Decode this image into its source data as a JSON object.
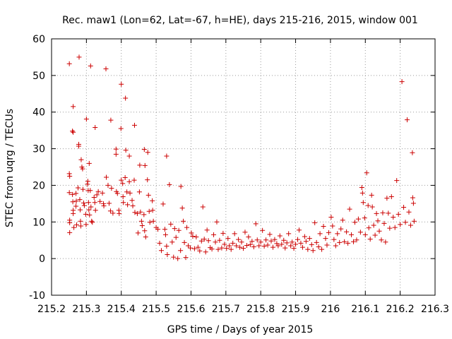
{
  "chart_data": {
    "type": "scatter",
    "title": "Rec. maw1 (Lon=62, Lat=-67, h=HE), days 215-216, 2015, window 001",
    "xlabel": "GPS time / Days of year 2015",
    "ylabel": "STEC from uqrg / TECUs",
    "xlim": [
      215.2,
      216.3
    ],
    "ylim": [
      -10,
      60
    ],
    "xticks": [
      {
        "value": 215.2,
        "label": "215.2"
      },
      {
        "value": 215.3,
        "label": "215.3"
      },
      {
        "value": 215.4,
        "label": "215.4"
      },
      {
        "value": 215.5,
        "label": "215.5"
      },
      {
        "value": 215.6,
        "label": "215.6"
      },
      {
        "value": 215.7,
        "label": "215.7"
      },
      {
        "value": 215.8,
        "label": "215.8"
      },
      {
        "value": 215.9,
        "label": "215.9"
      },
      {
        "value": 216.0,
        "label": "216"
      },
      {
        "value": 216.1,
        "label": "216.1"
      },
      {
        "value": 216.2,
        "label": "216.2"
      },
      {
        "value": 216.3,
        "label": "216.3"
      }
    ],
    "yticks": [
      {
        "value": -10,
        "label": "-10"
      },
      {
        "value": 0,
        "label": "0"
      },
      {
        "value": 10,
        "label": "10"
      },
      {
        "value": 20,
        "label": "20"
      },
      {
        "value": 30,
        "label": "30"
      },
      {
        "value": 40,
        "label": "40"
      },
      {
        "value": 50,
        "label": "50"
      },
      {
        "value": 60,
        "label": "60"
      }
    ],
    "grid": true,
    "marker_color": "#cc0000",
    "series": [
      {
        "points": [
          [
            215.251,
            53.2
          ],
          [
            215.262,
            41.5
          ],
          [
            215.26,
            34.8
          ],
          [
            215.262,
            34.5
          ],
          [
            215.279,
            55
          ],
          [
            215.278,
            31.2
          ],
          [
            215.278,
            30.7
          ],
          [
            215.285,
            27
          ],
          [
            215.287,
            25
          ],
          [
            215.289,
            24.5
          ],
          [
            215.3,
            38.1
          ],
          [
            215.308,
            26
          ],
          [
            215.312,
            52.6
          ],
          [
            215.325,
            35.8
          ],
          [
            215.356,
            51.8
          ],
          [
            215.37,
            37.8
          ],
          [
            215.385,
            29.9
          ],
          [
            215.385,
            28.5
          ],
          [
            215.4,
            47.6
          ],
          [
            215.399,
            35.5
          ],
          [
            215.412,
            43.8
          ],
          [
            215.413,
            29.6
          ],
          [
            215.423,
            28
          ],
          [
            215.438,
            36.4
          ],
          [
            215.453,
            25.5
          ],
          [
            215.466,
            29.8
          ],
          [
            215.468,
            25.4
          ],
          [
            215.476,
            29
          ],
          [
            215.53,
            28
          ],
          [
            215.571,
            19.7
          ],
          [
            215.251,
            23.2
          ],
          [
            215.252,
            22.5
          ],
          [
            215.251,
            18
          ],
          [
            215.252,
            10.5
          ],
          [
            215.252,
            9.8
          ],
          [
            215.252,
            7.1
          ],
          [
            215.26,
            17.5
          ],
          [
            215.261,
            15.5
          ],
          [
            215.262,
            13.2
          ],
          [
            215.262,
            12.3
          ],
          [
            215.264,
            8.5
          ],
          [
            215.27,
            17.8
          ],
          [
            215.271,
            15.7
          ],
          [
            215.27,
            14.3
          ],
          [
            215.272,
            9.2
          ],
          [
            215.276,
            19.3
          ],
          [
            215.281,
            16.1
          ],
          [
            215.282,
            13.3
          ],
          [
            215.283,
            10.2
          ],
          [
            215.284,
            8.9
          ],
          [
            215.29,
            18.9
          ],
          [
            215.292,
            15.2
          ],
          [
            215.294,
            14.5
          ],
          [
            215.298,
            12.1
          ],
          [
            215.299,
            9.3
          ],
          [
            215.304,
            21.1
          ],
          [
            215.303,
            20.3
          ],
          [
            215.305,
            18.6
          ],
          [
            215.306,
            15.3
          ],
          [
            215.307,
            13.3
          ],
          [
            215.309,
            11.9
          ],
          [
            215.311,
            18.6
          ],
          [
            215.313,
            14.1
          ],
          [
            215.315,
            10.2
          ],
          [
            215.317,
            9.9
          ],
          [
            215.322,
            16.7
          ],
          [
            215.324,
            15.3
          ],
          [
            215.326,
            13.2
          ],
          [
            215.33,
            17.4
          ],
          [
            215.334,
            18.3
          ],
          [
            215.339,
            15.6
          ],
          [
            215.346,
            17.9
          ],
          [
            215.349,
            15
          ],
          [
            215.35,
            14.4
          ],
          [
            215.357,
            22.2
          ],
          [
            215.362,
            20
          ],
          [
            215.365,
            15.1
          ],
          [
            215.369,
            13
          ],
          [
            215.372,
            19.2
          ],
          [
            215.376,
            12.4
          ],
          [
            215.386,
            18.3
          ],
          [
            215.389,
            17.8
          ],
          [
            215.393,
            13.2
          ],
          [
            215.394,
            12.3
          ],
          [
            215.4,
            21.4
          ],
          [
            215.404,
            20.5
          ],
          [
            215.405,
            16.9
          ],
          [
            215.406,
            15.3
          ],
          [
            215.411,
            22.1
          ],
          [
            215.416,
            18.2
          ],
          [
            215.418,
            14.7
          ],
          [
            215.423,
            21
          ],
          [
            215.425,
            17.9
          ],
          [
            215.431,
            15.9
          ],
          [
            215.433,
            14.4
          ],
          [
            215.437,
            21.4
          ],
          [
            215.439,
            12.6
          ],
          [
            215.446,
            12.3
          ],
          [
            215.448,
            7
          ],
          [
            215.452,
            18.2
          ],
          [
            215.455,
            12.7
          ],
          [
            215.458,
            10.2
          ],
          [
            215.46,
            9
          ],
          [
            215.465,
            12
          ],
          [
            215.467,
            7.6
          ],
          [
            215.47,
            5.9
          ],
          [
            215.475,
            21.5
          ],
          [
            215.478,
            17.3
          ],
          [
            215.48,
            12.9
          ],
          [
            215.482,
            9.9
          ],
          [
            215.489,
            15.8
          ],
          [
            215.49,
            13.2
          ],
          [
            215.492,
            10.2
          ],
          [
            215.5,
            8.5
          ],
          [
            215.505,
            8
          ],
          [
            215.51,
            4.2
          ],
          [
            215.515,
            2.2
          ],
          [
            215.52,
            14.9
          ],
          [
            215.525,
            8
          ],
          [
            215.527,
            6.5
          ],
          [
            215.53,
            3.4
          ],
          [
            215.532,
            1.1
          ],
          [
            215.538,
            20.2
          ],
          [
            215.542,
            9.4
          ],
          [
            215.546,
            4.5
          ],
          [
            215.55,
            0.4
          ],
          [
            215.553,
            8.2
          ],
          [
            215.557,
            5.8
          ],
          [
            215.562,
            0
          ],
          [
            215.565,
            7.7
          ],
          [
            215.57,
            2.2
          ],
          [
            215.575,
            13.8
          ],
          [
            215.578,
            10.2
          ],
          [
            215.581,
            4.4
          ],
          [
            215.585,
            0.3
          ],
          [
            215.588,
            8.5
          ],
          [
            215.592,
            3.5
          ],
          [
            215.598,
            2.9
          ],
          [
            215.601,
            7
          ],
          [
            215.605,
            6.1
          ],
          [
            215.61,
            2.7
          ],
          [
            215.615,
            5.9
          ],
          [
            215.62,
            3.1
          ],
          [
            215.625,
            2.1
          ],
          [
            215.63,
            4.8
          ],
          [
            215.634,
            14.1
          ],
          [
            215.638,
            5.3
          ],
          [
            215.642,
            1.8
          ],
          [
            215.646,
            7.8
          ],
          [
            215.65,
            4.9
          ],
          [
            215.655,
            3
          ],
          [
            215.66,
            2.6
          ],
          [
            215.665,
            6.5
          ],
          [
            215.67,
            4.5
          ],
          [
            215.674,
            10
          ],
          [
            215.678,
            2.5
          ],
          [
            215.682,
            5
          ],
          [
            215.688,
            2.9
          ],
          [
            215.692,
            6.9
          ],
          [
            215.696,
            3.9
          ],
          [
            215.702,
            2.8
          ],
          [
            215.706,
            5.5
          ],
          [
            215.71,
            3.5
          ],
          [
            215.715,
            2.5
          ],
          [
            215.72,
            4.2
          ],
          [
            215.725,
            6.8
          ],
          [
            215.73,
            3.5
          ],
          [
            215.736,
            5.2
          ],
          [
            215.74,
            3.1
          ],
          [
            215.745,
            4.5
          ],
          [
            215.75,
            2.8
          ],
          [
            215.755,
            7.2
          ],
          [
            215.76,
            3.6
          ],
          [
            215.765,
            5.9
          ],
          [
            215.77,
            3.8
          ],
          [
            215.775,
            4.7
          ],
          [
            215.78,
            3.2
          ],
          [
            215.786,
            9.5
          ],
          [
            215.79,
            5.1
          ],
          [
            215.795,
            3.5
          ],
          [
            215.8,
            4.5
          ],
          [
            215.805,
            7.7
          ],
          [
            215.81,
            3.4
          ],
          [
            215.815,
            5.1
          ],
          [
            215.82,
            3.7
          ],
          [
            215.826,
            6.6
          ],
          [
            215.83,
            4.8
          ],
          [
            215.835,
            3.1
          ],
          [
            215.84,
            5.2
          ],
          [
            215.846,
            4.1
          ],
          [
            215.85,
            3.5
          ],
          [
            215.855,
            6.2
          ],
          [
            215.86,
            3.9
          ],
          [
            215.866,
            5
          ],
          [
            215.87,
            2.9
          ],
          [
            215.875,
            4.3
          ],
          [
            215.88,
            6.8
          ],
          [
            215.886,
            3.5
          ],
          [
            215.89,
            4.5
          ],
          [
            215.895,
            2.8
          ],
          [
            215.9,
            3.9
          ],
          [
            215.906,
            5.2
          ],
          [
            215.91,
            7.8
          ],
          [
            215.915,
            4.2
          ],
          [
            215.92,
            3.1
          ],
          [
            215.926,
            6
          ],
          [
            215.93,
            4.7
          ],
          [
            215.935,
            2.5
          ],
          [
            215.94,
            5.5
          ],
          [
            215.946,
            3.8
          ],
          [
            215.95,
            2.2
          ],
          [
            215.955,
            9.8
          ],
          [
            215.96,
            4.4
          ],
          [
            215.966,
            3.2
          ],
          [
            215.97,
            6.8
          ],
          [
            215.975,
            2.5
          ],
          [
            215.98,
            8.8
          ],
          [
            215.986,
            5.5
          ],
          [
            215.99,
            3.7
          ],
          [
            215.995,
            7.1
          ],
          [
            216.002,
            11.3
          ],
          [
            216.006,
            8.9
          ],
          [
            216.01,
            5.2
          ],
          [
            216.015,
            3.5
          ],
          [
            216.02,
            6.8
          ],
          [
            216.026,
            4.4
          ],
          [
            216.03,
            8.1
          ],
          [
            216.035,
            10.5
          ],
          [
            216.04,
            4.6
          ],
          [
            216.046,
            7.3
          ],
          [
            216.05,
            4.2
          ],
          [
            216.055,
            13.5
          ],
          [
            216.06,
            6.5
          ],
          [
            216.066,
            4.6
          ],
          [
            216.07,
            9.9
          ],
          [
            216.075,
            5.1
          ],
          [
            216.08,
            10.8
          ],
          [
            216.086,
            7.2
          ],
          [
            216.09,
            19.4
          ],
          [
            216.092,
            17.9
          ],
          [
            216.094,
            15.3
          ],
          [
            216.098,
            11.1
          ],
          [
            216.1,
            6.5
          ],
          [
            216.104,
            23.4
          ],
          [
            216.108,
            14.5
          ],
          [
            216.11,
            8.4
          ],
          [
            216.114,
            5.3
          ],
          [
            216.118,
            17.3
          ],
          [
            216.12,
            14.1
          ],
          [
            216.124,
            9.1
          ],
          [
            216.128,
            6.4
          ],
          [
            216.132,
            12.3
          ],
          [
            216.136,
            10.3
          ],
          [
            216.14,
            7.5
          ],
          [
            216.146,
            5.1
          ],
          [
            216.15,
            12.5
          ],
          [
            216.154,
            9.6
          ],
          [
            216.158,
            4.5
          ],
          [
            216.162,
            16.5
          ],
          [
            216.166,
            12.4
          ],
          [
            216.17,
            8.3
          ],
          [
            216.175,
            16.9
          ],
          [
            216.18,
            11.3
          ],
          [
            216.185,
            8.5
          ],
          [
            216.19,
            21.3
          ],
          [
            216.195,
            12.1
          ],
          [
            216.2,
            9.3
          ],
          [
            216.205,
            48.3
          ],
          [
            216.21,
            14
          ],
          [
            216.215,
            9.9
          ],
          [
            216.22,
            37.9
          ],
          [
            216.225,
            12.7
          ],
          [
            216.23,
            9.1
          ],
          [
            216.235,
            28.9
          ],
          [
            216.236,
            16.6
          ],
          [
            216.238,
            15.1
          ],
          [
            216.24,
            10.2
          ]
        ]
      }
    ]
  }
}
